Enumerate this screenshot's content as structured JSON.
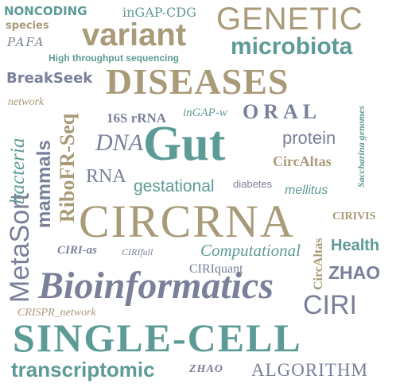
{
  "colors": {
    "teal": "#5d9b96",
    "tan": "#a99a78",
    "slate": "#7a8099",
    "light_slate": "#9aa0b3"
  },
  "words": {
    "noncoding": "NONCODING",
    "species": "species",
    "pafa": "PAFA",
    "ingap_cdg": "inGAP-CDG",
    "genetic": "GENETIC",
    "variant": "variant",
    "microbiota": "microbiota",
    "high_throughput": "High throughput sequencing",
    "breakseek": "BreakSeek",
    "diseases": "DISEASES",
    "network": "network",
    "metasort": "MetaSort",
    "bacteria": "bacteria",
    "ribofr_seq": "RiboFR-Seq",
    "rrna_16s": "16S rRNA",
    "ingap_w": "inGAP-w",
    "oral": "ORAL",
    "saccharina": "Saccharina genomes",
    "dna": "DNA",
    "gut": "Gut",
    "protein": "protein",
    "circaltas_h": "CircAltas",
    "mammals": "mammals",
    "rna": "RNA",
    "gestational": "gestational",
    "diabetes": "diabetes",
    "mellitus": "mellitus",
    "circrna": "CIRCRNA",
    "cirivis": "CIRIVIS",
    "circaltas_v": "CircAltas",
    "health": "Health",
    "ciri_as": "CIRI-as",
    "cirifull": "CIRIfull",
    "computational": "Computational",
    "zhao_big": "ZHAO",
    "ciriquant": "CIRIquant",
    "bioinformatics": "Bioinformatics",
    "ciri": "CIRI",
    "crispr_network": "CRISPR_network",
    "single_cell": "SINGLE-CELL",
    "transcriptomic": "transcriptomic",
    "zhao_small": "ZHAO",
    "algorithm": "ALGORITHM"
  }
}
